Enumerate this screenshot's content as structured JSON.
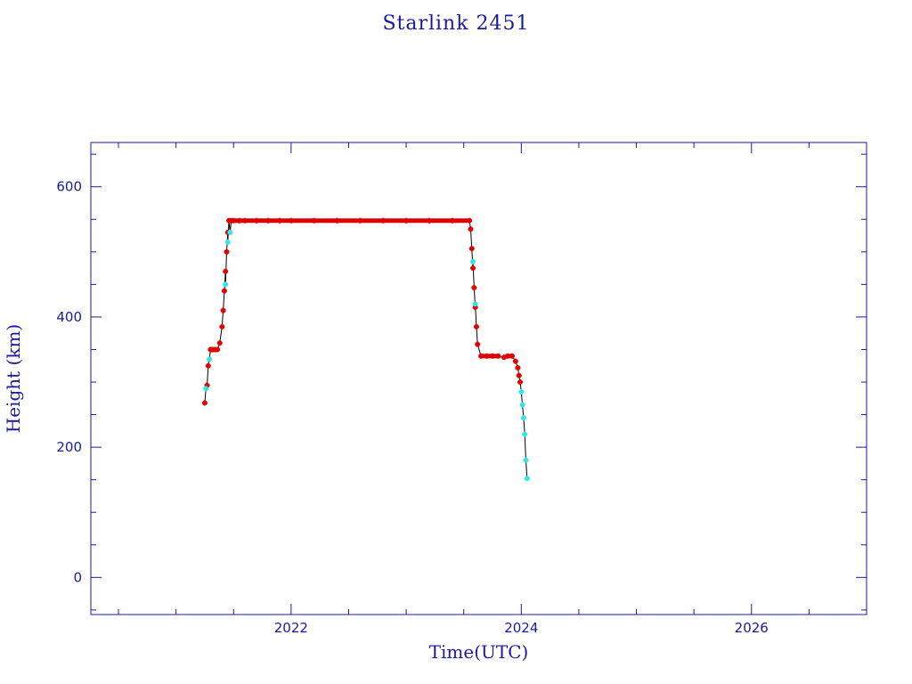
{
  "chart_data": {
    "type": "scatter",
    "title": "Starlink 2451",
    "xlabel": "Time(UTC)",
    "ylabel": "Height (km)",
    "xlim": [
      2020.26,
      2027.0
    ],
    "ylim": [
      -57,
      668
    ],
    "x_ticks": [
      2022,
      2024,
      2026
    ],
    "y_ticks": [
      0,
      200,
      400,
      600
    ],
    "grid": false,
    "colors": {
      "axis": "#1a1aa0",
      "primary": "#e00000",
      "secondary": "#33e6e6",
      "line": "#000000"
    },
    "series": [
      {
        "color": "#e00000",
        "x": [
          2021.25,
          2021.27,
          2021.28,
          2021.3,
          2021.31,
          2021.32,
          2021.34,
          2021.36,
          2021.38,
          2021.4,
          2021.41,
          2021.42,
          2021.43,
          2021.44,
          2021.45,
          2021.46,
          2021.48,
          2021.5,
          2021.55,
          2021.6,
          2021.7,
          2021.8,
          2021.9,
          2022.0,
          2022.2,
          2022.4,
          2022.6,
          2022.8,
          2023.0,
          2023.2,
          2023.4,
          2023.55,
          2023.56,
          2023.57,
          2023.58,
          2023.59,
          2023.6,
          2023.61,
          2023.62,
          2023.65,
          2023.7,
          2023.75,
          2023.8,
          2023.85,
          2023.88,
          2023.92,
          2023.95,
          2023.97,
          2023.98,
          2023.99
        ],
        "y": [
          268,
          295,
          325,
          350,
          350,
          350,
          350,
          350,
          360,
          385,
          410,
          440,
          470,
          500,
          530,
          548,
          548,
          548,
          548,
          548,
          548,
          548,
          548,
          548,
          548,
          548,
          548,
          548,
          548,
          548,
          548,
          548,
          535,
          505,
          475,
          445,
          415,
          385,
          358,
          340,
          340,
          340,
          340,
          338,
          340,
          340,
          332,
          322,
          310,
          300
        ]
      },
      {
        "color": "#33e6e6",
        "x": [
          2021.26,
          2021.29,
          2021.43,
          2021.45,
          2021.47,
          2023.58,
          2023.6,
          2024.0,
          2024.01,
          2024.02,
          2024.03,
          2024.04,
          2024.05
        ],
        "y": [
          290,
          335,
          450,
          515,
          530,
          485,
          420,
          285,
          265,
          245,
          220,
          180,
          152
        ]
      }
    ]
  }
}
